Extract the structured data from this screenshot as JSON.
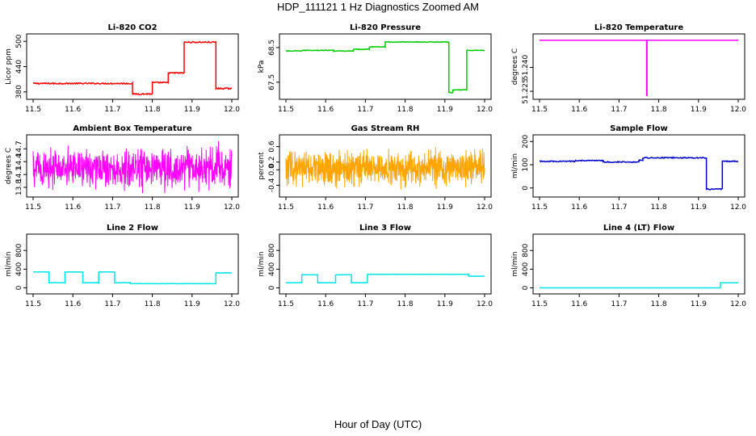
{
  "figure": {
    "title": "HDP_111121  1 Hz Diagnostics Zoomed AM",
    "xlabel": "Hour of Day (UTC)"
  },
  "chart_data": [
    {
      "id": "co2",
      "type": "line",
      "title": "Li-820 CO2",
      "ylabel": "Licor ppm",
      "color": "#ff0000",
      "xlim": [
        11.5,
        12.0
      ],
      "ylim": [
        370,
        510
      ],
      "xticks": [
        11.5,
        11.6,
        11.7,
        11.8,
        11.9,
        12.0
      ],
      "xtick_labels": [
        "11.5",
        "11.6",
        "11.7",
        "11.8",
        "11.9",
        "12.0"
      ],
      "yticks": [
        380,
        440,
        500
      ],
      "ytick_labels": [
        "380",
        "440",
        "500"
      ],
      "noise": 1.5,
      "segments": [
        [
          11.5,
          11.75,
          400
        ],
        [
          11.75,
          11.8,
          375
        ],
        [
          11.8,
          11.84,
          402
        ],
        [
          11.84,
          11.88,
          425
        ],
        [
          11.88,
          11.96,
          498
        ],
        [
          11.96,
          12.0,
          388
        ]
      ]
    },
    {
      "id": "pressure",
      "type": "line",
      "title": "Li-820 Pressure",
      "ylabel": "kPa",
      "color": "#00cc00",
      "xlim": [
        11.5,
        12.0
      ],
      "ylim": [
        67.1,
        68.8
      ],
      "xticks": [
        11.5,
        11.6,
        11.7,
        11.8,
        11.9,
        12.0
      ],
      "xtick_labels": [
        "11.5",
        "11.6",
        "11.7",
        "11.8",
        "11.9",
        "12.0"
      ],
      "yticks": [
        67.5,
        68.5
      ],
      "ytick_labels": [
        "67.5",
        "68.5"
      ],
      "noise": 0.01,
      "segments": [
        [
          11.5,
          11.54,
          68.4
        ],
        [
          11.54,
          11.62,
          68.42
        ],
        [
          11.62,
          11.67,
          68.4
        ],
        [
          11.67,
          11.71,
          68.45
        ],
        [
          11.71,
          11.75,
          68.52
        ],
        [
          11.75,
          11.91,
          68.66
        ],
        [
          11.91,
          11.92,
          67.2
        ],
        [
          11.92,
          11.955,
          67.28
        ],
        [
          11.955,
          12.0,
          68.42
        ]
      ]
    },
    {
      "id": "temperature",
      "type": "line",
      "title": "Li-820 Temperature",
      "ylabel": "degrees C",
      "color": "#ff00ff",
      "xlim": [
        11.5,
        12.0
      ],
      "ylim": [
        51.222,
        51.259
      ],
      "xticks": [
        11.5,
        11.6,
        11.7,
        11.8,
        11.9,
        12.0
      ],
      "xtick_labels": [
        "11.5",
        "11.6",
        "11.7",
        "11.8",
        "11.9",
        "12.0"
      ],
      "yticks": [
        51.225,
        51.24
      ],
      "ytick_labels": [
        "51.225",
        "51.240"
      ],
      "noise": 0,
      "segments": [
        [
          11.5,
          12.0,
          51.257
        ]
      ],
      "spike": {
        "x": 11.77,
        "y": 51.222
      }
    },
    {
      "id": "ambient_temp",
      "type": "noise",
      "title": "Ambient Box Temperature",
      "ylabel": "degrees C",
      "color": "#ff00ff",
      "xlim": [
        11.5,
        12.0
      ],
      "ylim": [
        13.65,
        14.95
      ],
      "xticks": [
        11.5,
        11.6,
        11.7,
        11.8,
        11.9,
        12.0
      ],
      "xtick_labels": [
        "11.5",
        "11.6",
        "11.7",
        "11.8",
        "11.9",
        "12.0"
      ],
      "yticks": [
        13.8,
        14.1,
        14.4,
        14.7
      ],
      "ytick_labels": [
        "13.8",
        "14.1",
        "14.4",
        "14.7"
      ],
      "center": 14.25,
      "amplitude": 0.5,
      "points": 700
    },
    {
      "id": "rh",
      "type": "noise",
      "title": "Gas Stream RH",
      "ylabel": "percent",
      "color": "#ffa500",
      "xlim": [
        11.5,
        12.0
      ],
      "ylim": [
        -0.62,
        0.82
      ],
      "xticks": [
        11.5,
        11.6,
        11.7,
        11.8,
        11.9,
        12.0
      ],
      "xtick_labels": [
        "11.5",
        "11.6",
        "11.7",
        "11.8",
        "11.9",
        "12.0"
      ],
      "yticks": [
        -0.4,
        0.0,
        0.2,
        0.6
      ],
      "ytick_labels": [
        "-0.4",
        "0.0",
        "0.2",
        "0.6"
      ],
      "center": 0.05,
      "amplitude": 0.45,
      "points": 900
    },
    {
      "id": "sample_flow",
      "type": "line",
      "title": "Sample Flow",
      "ylabel": "ml/min",
      "color": "#0000cc",
      "xlim": [
        11.5,
        12.0
      ],
      "ylim": [
        -25,
        215
      ],
      "xticks": [
        11.5,
        11.6,
        11.7,
        11.8,
        11.9,
        12.0
      ],
      "xtick_labels": [
        "11.5",
        "11.6",
        "11.7",
        "11.8",
        "11.9",
        "12.0"
      ],
      "yticks": [
        0,
        100,
        200
      ],
      "ytick_labels": [
        "0",
        "100",
        "200"
      ],
      "noise": 2,
      "segments": [
        [
          11.5,
          11.59,
          115
        ],
        [
          11.59,
          11.66,
          118
        ],
        [
          11.66,
          11.75,
          112
        ],
        [
          11.75,
          11.76,
          120
        ],
        [
          11.76,
          11.92,
          130
        ],
        [
          11.92,
          11.96,
          -5
        ],
        [
          11.96,
          12.0,
          115
        ]
      ]
    },
    {
      "id": "line2_flow",
      "type": "line",
      "title": "Line 2 Flow",
      "ylabel": "ml/min",
      "color": "#00e5e5",
      "xlim": [
        11.5,
        12.0
      ],
      "ylim": [
        -60,
        1080
      ],
      "xticks": [
        11.5,
        11.6,
        11.7,
        11.8,
        11.9,
        12.0
      ],
      "xtick_labels": [
        "11.5",
        "11.6",
        "11.7",
        "11.8",
        "11.9",
        "12.0"
      ],
      "yticks": [
        0,
        400,
        800
      ],
      "ytick_labels": [
        "0",
        "400",
        "800"
      ],
      "noise": 4,
      "segments": [
        [
          11.5,
          11.54,
          340
        ],
        [
          11.54,
          11.58,
          110
        ],
        [
          11.58,
          11.625,
          340
        ],
        [
          11.625,
          11.665,
          110
        ],
        [
          11.665,
          11.705,
          340
        ],
        [
          11.705,
          11.745,
          110
        ],
        [
          11.745,
          11.96,
          90
        ],
        [
          11.96,
          12.0,
          320
        ]
      ]
    },
    {
      "id": "line3_flow",
      "type": "line",
      "title": "Line 3 Flow",
      "ylabel": "ml/min",
      "color": "#00e5e5",
      "xlim": [
        11.5,
        12.0
      ],
      "ylim": [
        -60,
        1080
      ],
      "xticks": [
        11.5,
        11.6,
        11.7,
        11.8,
        11.9,
        12.0
      ],
      "xtick_labels": [
        "11.5",
        "11.6",
        "11.7",
        "11.8",
        "11.9",
        "12.0"
      ],
      "yticks": [
        0,
        400,
        800
      ],
      "ytick_labels": [
        "0",
        "400",
        "800"
      ],
      "noise": 3,
      "segments": [
        [
          11.5,
          11.54,
          110
        ],
        [
          11.54,
          11.58,
          280
        ],
        [
          11.58,
          11.625,
          110
        ],
        [
          11.625,
          11.665,
          280
        ],
        [
          11.665,
          11.705,
          110
        ],
        [
          11.705,
          11.96,
          290
        ],
        [
          11.96,
          12.0,
          250
        ]
      ]
    },
    {
      "id": "line4_flow",
      "type": "line",
      "title": "Line 4 (LT) Flow",
      "ylabel": "ml/min",
      "color": "#00e5e5",
      "xlim": [
        11.5,
        12.0
      ],
      "ylim": [
        -60,
        1080
      ],
      "xticks": [
        11.5,
        11.6,
        11.7,
        11.8,
        11.9,
        12.0
      ],
      "xtick_labels": [
        "11.5",
        "11.6",
        "11.7",
        "11.8",
        "11.9",
        "12.0"
      ],
      "yticks": [
        0,
        400,
        800
      ],
      "ytick_labels": [
        "0",
        "400",
        "800"
      ],
      "noise": 0,
      "segments": [
        [
          11.5,
          11.955,
          0
        ],
        [
          11.955,
          12.0,
          110
        ]
      ]
    }
  ]
}
